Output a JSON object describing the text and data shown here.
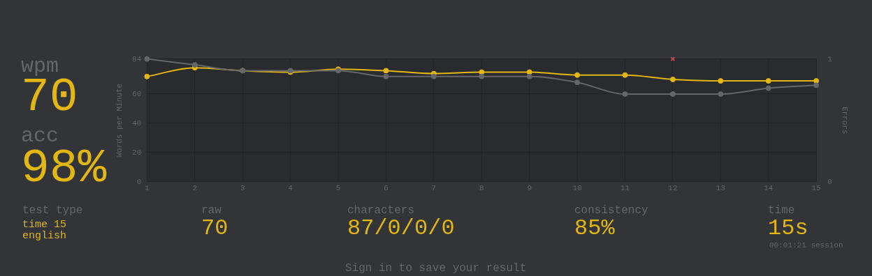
{
  "chart_data": {
    "type": "line",
    "ylabel": "Words per Minute",
    "y2label": "Errors",
    "x": [
      1,
      2,
      3,
      4,
      5,
      6,
      7,
      8,
      9,
      10,
      11,
      12,
      13,
      14,
      15
    ],
    "xlim": [
      1,
      15
    ],
    "xticks": [
      1,
      2,
      3,
      4,
      5,
      6,
      7,
      8,
      9,
      10,
      11,
      12,
      13,
      14,
      15
    ],
    "ylim": [
      0,
      84
    ],
    "yticks": [
      0,
      20,
      40,
      60,
      84
    ],
    "y2lim": [
      0,
      1
    ],
    "y2ticks": [
      0,
      1
    ],
    "grid": true,
    "legend": false,
    "marker": "circle",
    "series": [
      {
        "color": "#646669",
        "values": [
          84,
          80,
          76,
          76,
          76,
          72,
          72,
          72,
          72,
          68,
          60,
          60,
          60,
          64,
          66
        ]
      },
      {
        "color": "#e2b714",
        "values": [
          72,
          78,
          76,
          75,
          77,
          76,
          74,
          75,
          75,
          73,
          73,
          70,
          69,
          69,
          69
        ]
      },
      {
        "type": "scatter",
        "axis": "y2",
        "marker": "cross",
        "color": "#ca4754",
        "values": [
          null,
          null,
          null,
          null,
          null,
          null,
          null,
          null,
          null,
          null,
          null,
          1,
          null,
          null,
          null
        ]
      }
    ],
    "annotations": [
      "wpm",
      "70",
      "acc",
      "98%",
      "test type",
      "time 15",
      "english",
      "raw",
      "70",
      "characters",
      "87/0/0/0",
      "consistency",
      "85%",
      "time",
      "15s",
      "00:01:21 session",
      "Sign in to save your result"
    ]
  }
}
